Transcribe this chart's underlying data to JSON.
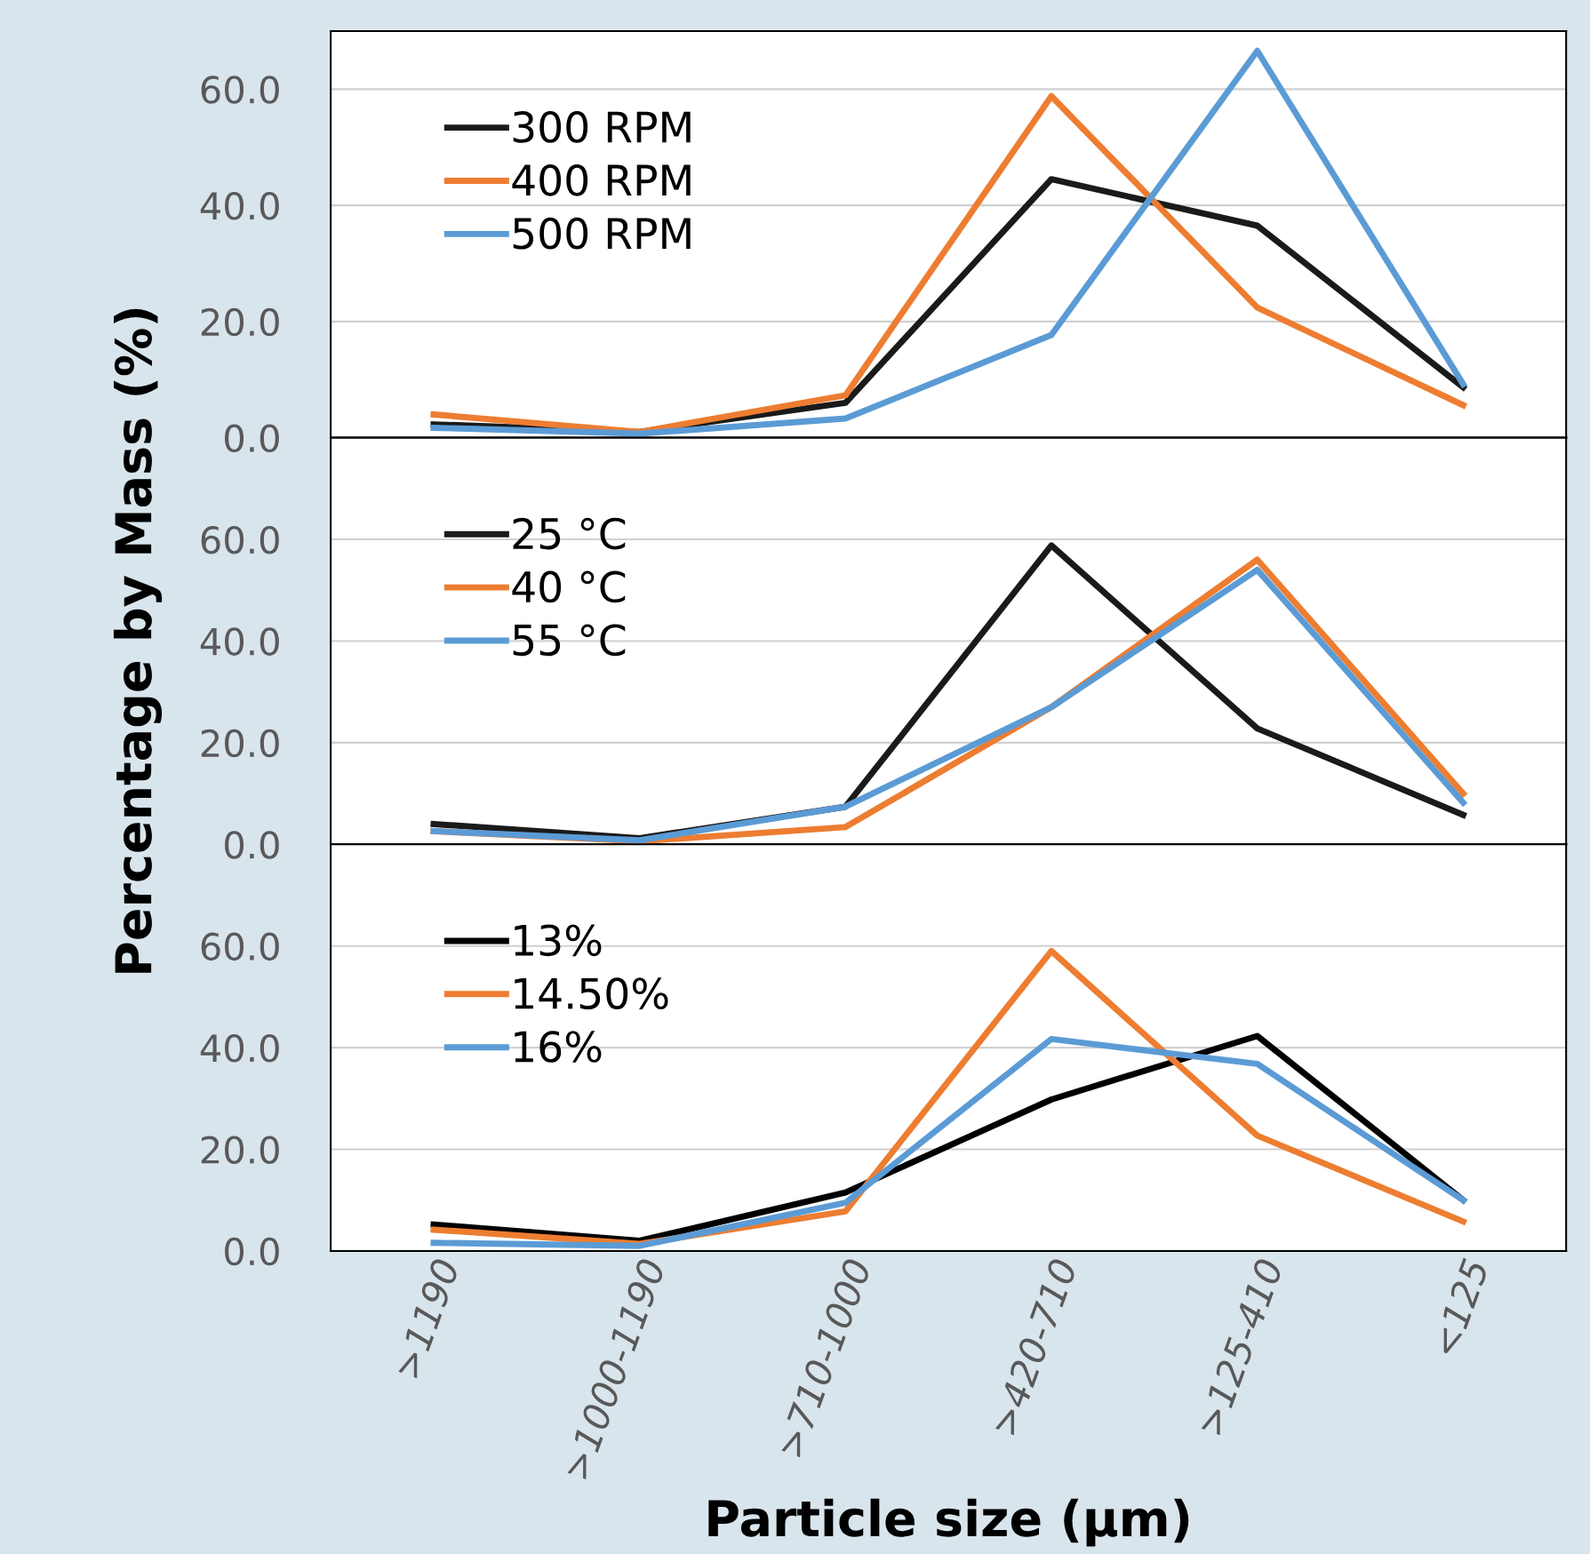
{
  "chart_data": [
    {
      "type": "line",
      "categories": [
        null,
        null,
        null,
        null,
        null,
        null
      ],
      "ylim": [
        0,
        70
      ],
      "yticks": [
        {
          "value": 0,
          "label": "0.0"
        },
        {
          "value": 20,
          "label": "20.0"
        },
        {
          "value": 40,
          "label": "40.0"
        },
        {
          "value": 60,
          "label": "60.0"
        }
      ],
      "grid": "y",
      "legend": "top left",
      "marker": "none",
      "line_style": "solid",
      "series": [
        {
          "name": "300 RPM",
          "color": "#1a1a1a",
          "values": [
            2.3,
            1,
            6,
            44.5,
            36.5,
            8.7
          ]
        },
        {
          "name": "400 RPM",
          "color": "#ed7d31",
          "values": [
            4,
            1,
            7.3,
            58.8,
            22.4,
            5.6
          ]
        },
        {
          "name": "500 RPM",
          "color": "#5b9bd5",
          "values": [
            1.7,
            0.7,
            3.3,
            17.7,
            66.6,
            9.2
          ]
        }
      ]
    },
    {
      "type": "line",
      "categories": [
        null,
        null,
        null,
        null,
        null,
        null
      ],
      "ylim": [
        0,
        80
      ],
      "yticks": [
        {
          "value": 0,
          "label": "0.0"
        },
        {
          "value": 20,
          "label": "20.0"
        },
        {
          "value": 40,
          "label": "40.0"
        },
        {
          "value": 60,
          "label": "60.0"
        }
      ],
      "grid": "y",
      "legend": "top left",
      "marker": "none",
      "line_style": "solid",
      "ylabel": "Percentage by Mass (%)",
      "series": [
        {
          "name": "25 °C",
          "color": "#1a1a1a",
          "values": [
            4,
            1.2,
            7.4,
            58.8,
            22.8,
            5.8
          ]
        },
        {
          "name": "40 °C",
          "color": "#ed7d31",
          "values": [
            2.6,
            0.6,
            3.4,
            27,
            56,
            10
          ]
        },
        {
          "name": "55 °C",
          "color": "#5b9bd5",
          "values": [
            2.6,
            0.8,
            7.4,
            27,
            54,
            8.2
          ]
        }
      ]
    },
    {
      "type": "line",
      "categories": [
        ">1190",
        ">1000-1190",
        ">710-1000",
        ">420-710",
        ">125-410",
        "<125"
      ],
      "ylim": [
        0,
        80
      ],
      "yticks": [
        {
          "value": 0,
          "label": "0.0"
        },
        {
          "value": 20,
          "label": "20.0"
        },
        {
          "value": 40,
          "label": "40.0"
        },
        {
          "value": 60,
          "label": "60.0"
        }
      ],
      "grid": "y",
      "legend": "top left",
      "marker": "none",
      "line_style": "solid",
      "xlabel": "Particle size (µm)",
      "series": [
        {
          "name": "13%",
          "color": "#000000",
          "values": [
            5.2,
            2,
            11.5,
            29.8,
            42.3,
            10
          ]
        },
        {
          "name": "14.50%",
          "color": "#ed7d31",
          "values": [
            4.2,
            1.4,
            7.8,
            59,
            22.7,
            5.8
          ]
        },
        {
          "name": "16%",
          "color": "#5b9bd5",
          "values": [
            1.6,
            1,
            9.5,
            41.7,
            36.8,
            10
          ]
        }
      ]
    }
  ]
}
